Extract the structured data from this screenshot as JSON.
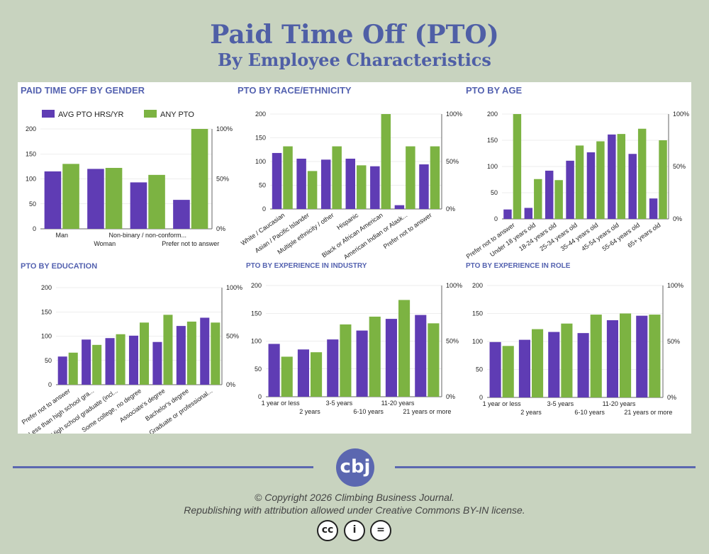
{
  "header": {
    "title": "Paid Time Off (PTO)",
    "subtitle": "By Employee Characteristics"
  },
  "legend": {
    "avg_label": "AVG PTO HRS/YR",
    "any_label": "ANY PTO"
  },
  "colors": {
    "avg": "#5f3cb4",
    "any": "#7cb342",
    "title": "#4f5fa6",
    "chart_title": "#5462b0"
  },
  "footer": {
    "logo_text": "cbj",
    "copyright": "© Copyright 2026 Climbing Business Journal.",
    "license": "Republishing with attribution allowed under Creative Commons BY-IN license.",
    "icons": [
      "cc-icon",
      "attribution-icon",
      "noderivatives-icon"
    ],
    "icon_glyphs": [
      "cc",
      "i",
      "="
    ]
  },
  "chart_data": [
    {
      "type": "bar",
      "title": "PAID TIME OFF BY GENDER",
      "categories": [
        "Man",
        "Woman",
        "Non-binary / non-conform...",
        "Prefer not to answer"
      ],
      "series": [
        {
          "name": "AVG PTO HRS/YR",
          "values": [
            115,
            120,
            93,
            58
          ],
          "axis": "left"
        },
        {
          "name": "ANY PTO",
          "values": [
            65,
            61,
            54,
            100
          ],
          "axis": "right"
        }
      ],
      "ylim": [
        0,
        200
      ],
      "yticks": [
        "0",
        "50",
        "100",
        "150",
        "200"
      ],
      "ylim_right": [
        0,
        100
      ],
      "yticks_right": [
        "0%",
        "50%",
        "100%"
      ],
      "legend": "top-left",
      "label_style": "stagger"
    },
    {
      "type": "bar",
      "title": "PTO BY RACE/ETHNICITY",
      "categories": [
        "White / Caucasian",
        "Asian / Pacific Islander",
        "Multiple ethnicity / other",
        "Hispanic",
        "Black or African American",
        "American Indian or Alask...",
        "Prefer not to answer"
      ],
      "series": [
        {
          "name": "AVG PTO HRS/YR",
          "values": [
            118,
            106,
            104,
            106,
            90,
            8,
            94
          ],
          "axis": "left"
        },
        {
          "name": "ANY PTO",
          "values": [
            66,
            40,
            66,
            46,
            100,
            66,
            66
          ],
          "axis": "right"
        }
      ],
      "ylim": [
        0,
        200
      ],
      "yticks": [
        "0",
        "50",
        "100",
        "150",
        "200"
      ],
      "ylim_right": [
        0,
        100
      ],
      "yticks_right": [
        "0%",
        "50%",
        "100%"
      ],
      "label_style": "rotated"
    },
    {
      "type": "bar",
      "title": "PTO BY AGE",
      "categories": [
        "Prefer not to answer",
        "Under 18 years old",
        "18-24 years old",
        "25-34 years old",
        "35-44 years old",
        "45-54 years old",
        "55-64 years old",
        "65+ years old"
      ],
      "series": [
        {
          "name": "AVG PTO HRS/YR",
          "values": [
            18,
            21,
            92,
            111,
            127,
            161,
            124,
            39
          ],
          "axis": "left"
        },
        {
          "name": "ANY PTO",
          "values": [
            100,
            38,
            37,
            70,
            74,
            81,
            86,
            75
          ],
          "axis": "right"
        }
      ],
      "ylim": [
        0,
        200
      ],
      "yticks": [
        "0",
        "50",
        "100",
        "150",
        "200"
      ],
      "ylim_right": [
        0,
        100
      ],
      "yticks_right": [
        "0%",
        "50%",
        "100%"
      ],
      "label_style": "rotated"
    },
    {
      "type": "bar",
      "title": "PTO BY EDUCATION",
      "categories": [
        "Prefer not to answer",
        "Less than high school gra...",
        "High school graduate (incl...",
        "Some college, no degree",
        "Associate's degree",
        "Bachelor's degree",
        "Graduate or professional..."
      ],
      "series": [
        {
          "name": "AVG PTO HRS/YR",
          "values": [
            58,
            93,
            96,
            101,
            88,
            121,
            138
          ],
          "axis": "left"
        },
        {
          "name": "ANY PTO",
          "values": [
            33,
            41,
            52,
            64,
            72,
            65,
            64
          ],
          "axis": "right"
        }
      ],
      "ylim": [
        0,
        200
      ],
      "yticks": [
        "0",
        "50",
        "100",
        "150",
        "200"
      ],
      "ylim_right": [
        0,
        100
      ],
      "yticks_right": [
        "0%",
        "50%",
        "100%"
      ],
      "label_style": "rotated"
    },
    {
      "type": "bar",
      "title": "PTO BY EXPERIENCE IN INDUSTRY",
      "categories": [
        "1 year or less",
        "2 years",
        "3-5 years",
        "6-10 years",
        "11-20 years",
        "21 years or more"
      ],
      "series": [
        {
          "name": "AVG PTO HRS/YR",
          "values": [
            95,
            85,
            103,
            119,
            140,
            147
          ],
          "axis": "left"
        },
        {
          "name": "ANY PTO",
          "values": [
            36,
            40,
            65,
            72,
            87,
            66
          ],
          "axis": "right"
        }
      ],
      "ylim": [
        0,
        200
      ],
      "yticks": [
        "0",
        "50",
        "100",
        "150",
        "200"
      ],
      "ylim_right": [
        0,
        100
      ],
      "yticks_right": [
        "0%",
        "50%",
        "100%"
      ],
      "label_style": "stagger"
    },
    {
      "type": "bar",
      "title": "PTO BY EXPERIENCE IN ROLE",
      "categories": [
        "1 year or less",
        "2 years",
        "3-5 years",
        "6-10 years",
        "11-20 years",
        "21 years or more"
      ],
      "series": [
        {
          "name": "AVG PTO HRS/YR",
          "values": [
            99,
            103,
            117,
            115,
            138,
            146
          ],
          "axis": "left"
        },
        {
          "name": "ANY PTO",
          "values": [
            46,
            61,
            66,
            74,
            75,
            74
          ],
          "axis": "right"
        }
      ],
      "ylim": [
        0,
        200
      ],
      "yticks": [
        "0",
        "50",
        "100",
        "150",
        "200"
      ],
      "ylim_right": [
        0,
        100
      ],
      "yticks_right": [
        "0%",
        "50%",
        "100%"
      ],
      "label_style": "stagger"
    }
  ]
}
